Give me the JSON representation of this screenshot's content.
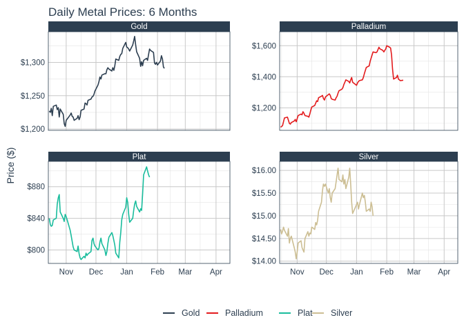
{
  "chart_data": {
    "type": "line",
    "title": "Daily Metal Prices: 6 Months",
    "ylabel": "Price ($)",
    "x_tick_labels": [
      "Nov",
      "Dec",
      "Jan",
      "Feb",
      "Mar",
      "Apr"
    ],
    "colors": {
      "Gold": "#2c3e50",
      "Palladium": "#e31a1c",
      "Plat": "#18bc9c",
      "Silver": "#ccbe93",
      "strip_bg": "#2c3e50"
    },
    "legend": {
      "position": "bottom",
      "entries": [
        "Gold",
        "Palladium",
        "Plat",
        "Silver"
      ]
    },
    "panels": [
      {
        "name": "Gold",
        "ylim": [
          1198,
          1346
        ],
        "y_ticks": [
          1200,
          1250,
          1300
        ],
        "y_tick_labels": [
          "$1,200",
          "$1,250",
          "$1,300"
        ],
        "x_start": "2018-10-15",
        "values": [
          1227,
          1225,
          1231,
          1220,
          1234,
          1236,
          1229,
          1232,
          1218,
          1230,
          1222,
          1208,
          1204,
          1213,
          1215,
          1221,
          1224,
          1219,
          1218,
          1213,
          1216,
          1220,
          1214,
          1218,
          1228,
          1230,
          1239,
          1238,
          1236,
          1243,
          1245,
          1248,
          1249,
          1252,
          1257,
          1266,
          1271,
          1278,
          1275,
          1281,
          1283,
          1283,
          1289,
          1292,
          1290,
          1287,
          1292,
          1288,
          1295,
          1305,
          1303,
          1309,
          1312,
          1313,
          1321,
          1330,
          1323,
          1322,
          1320,
          1317,
          1326,
          1332,
          1339,
          1326,
          1316,
          1306,
          1294,
          1301,
          1295,
          1303,
          1306,
          1303,
          1312,
          1320,
          1318,
          1315,
          1299,
          1297,
          1300,
          1296,
          1302,
          1310,
          1305,
          1293,
          1291
        ]
      },
      {
        "name": "Palladium",
        "ylim": [
          1055,
          1690
        ],
        "y_ticks": [
          1200,
          1400,
          1600
        ],
        "y_tick_labels": [
          "$1,200",
          "$1,400",
          "$1,600"
        ],
        "x_start": "2018-10-15",
        "values": [
          1075,
          1080,
          1085,
          1110,
          1135,
          1140,
          1120,
          1100,
          1095,
          1105,
          1115,
          1125,
          1110,
          1130,
          1150,
          1160,
          1155,
          1175,
          1165,
          1150,
          1145,
          1140,
          1160,
          1185,
          1205,
          1215,
          1230,
          1245,
          1240,
          1265,
          1275,
          1280,
          1260,
          1250,
          1270,
          1285,
          1290,
          1280,
          1260,
          1255,
          1250,
          1265,
          1275,
          1295,
          1310,
          1320,
          1330,
          1350,
          1365,
          1380,
          1370,
          1360,
          1380,
          1395,
          1365,
          1350,
          1345,
          1360,
          1370,
          1375,
          1380,
          1395,
          1420,
          1440,
          1460,
          1470,
          1500,
          1520,
          1540,
          1560,
          1555,
          1560,
          1575,
          1590,
          1580,
          1570,
          1560,
          1570,
          1580,
          1600,
          1590,
          1585,
          1540,
          1450,
          1385,
          1395,
          1410,
          1385,
          1380,
          1375,
          1378
        ]
      },
      {
        "name": "Plat",
        "ylim": [
          783,
          912
        ],
        "y_ticks": [
          800,
          840,
          880
        ],
        "y_tick_labels": [
          "$800",
          "$840",
          "$880"
        ],
        "x_start": "2018-10-15",
        "values": [
          840,
          832,
          830,
          831,
          838,
          840,
          858,
          866,
          870,
          848,
          840,
          836,
          845,
          842,
          838,
          825,
          818,
          811,
          804,
          800,
          798,
          805,
          795,
          790,
          788,
          792,
          790,
          796,
          793,
          795,
          798,
          812,
          815,
          808,
          805,
          800,
          802,
          810,
          815,
          808,
          800,
          793,
          798,
          808,
          816,
          822,
          818,
          812,
          806,
          796,
          790,
          810,
          822,
          838,
          845,
          854,
          866,
          860,
          845,
          835,
          840,
          850,
          858,
          862,
          855,
          848,
          852,
          850,
          870,
          895,
          905,
          900,
          895,
          892
        ]
      },
      {
        "name": "Silver",
        "ylim": [
          13.95,
          16.2
        ],
        "y_ticks": [
          14.0,
          14.5,
          15.0,
          15.5,
          16.0
        ],
        "y_tick_labels": [
          "$14.00",
          "$14.50",
          "$15.00",
          "$15.50",
          "$16.00"
        ],
        "x_start": "2018-10-15",
        "values": [
          14.7,
          14.6,
          14.66,
          14.75,
          14.68,
          14.55,
          14.72,
          14.4,
          14.5,
          14.55,
          14.3,
          14.2,
          14.05,
          14.2,
          14.4,
          14.45,
          14.3,
          14.25,
          14.2,
          14.5,
          14.65,
          14.55,
          14.62,
          14.6,
          14.75,
          14.7,
          14.85,
          14.8,
          14.9,
          15.1,
          15.3,
          15.55,
          15.7,
          15.65,
          15.7,
          15.5,
          15.6,
          15.4,
          15.3,
          15.5,
          15.6,
          15.75,
          15.9,
          16.05,
          15.8,
          15.75,
          15.9,
          15.7,
          15.8,
          15.6,
          15.85,
          16.05,
          15.7,
          15.3,
          15.05,
          15.2,
          15.25,
          15.3,
          15.15,
          15.25,
          15.5,
          15.4,
          15.45,
          15.3,
          15.1,
          15.15,
          15.1,
          15.3,
          15.2,
          15.0
        ]
      }
    ]
  }
}
